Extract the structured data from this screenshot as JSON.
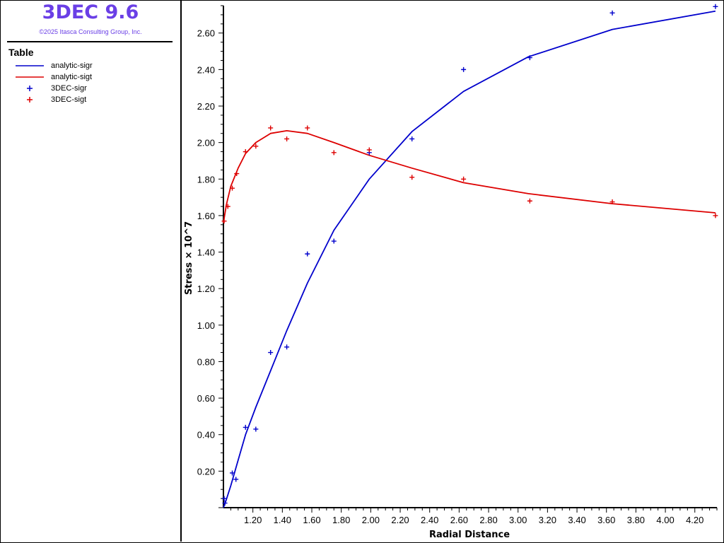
{
  "app": {
    "title": "3DEC 9.6",
    "copyright": "©2025 Itasca Consulting Group, Inc.",
    "title_color": "#6a3fe6"
  },
  "legend": {
    "heading": "Table",
    "items": [
      {
        "label": "analytic-sigr",
        "style": "line",
        "color": "#0000cc"
      },
      {
        "label": "analytic-sigt",
        "style": "line",
        "color": "#dd0000"
      },
      {
        "label": "3DEC-sigr",
        "style": "marker",
        "color": "#0000cc"
      },
      {
        "label": "3DEC-sigt",
        "style": "marker",
        "color": "#dd0000"
      }
    ]
  },
  "chart_data": {
    "type": "line",
    "xlabel": "Radial Distance",
    "ylabel": "Stress × 10^7",
    "xlim": [
      1.0,
      4.35
    ],
    "ylim": [
      0.0,
      2.75
    ],
    "x_ticks": [
      "1.20",
      "1.40",
      "1.60",
      "1.80",
      "2.00",
      "2.20",
      "2.40",
      "2.60",
      "2.80",
      "3.00",
      "3.20",
      "3.40",
      "3.60",
      "3.80",
      "4.00",
      "4.20"
    ],
    "y_ticks": [
      "0.20",
      "0.40",
      "0.60",
      "0.80",
      "1.00",
      "1.20",
      "1.40",
      "1.60",
      "1.80",
      "2.00",
      "2.20",
      "2.40",
      "2.60"
    ],
    "grid": false,
    "series": [
      {
        "name": "analytic-sigr",
        "kind": "line",
        "color": "#0000cc",
        "x": [
          1.0,
          1.02,
          1.05,
          1.1,
          1.15,
          1.22,
          1.32,
          1.43,
          1.57,
          1.75,
          1.99,
          2.28,
          2.63,
          3.07,
          3.64,
          4.34
        ],
        "y": [
          0.0,
          0.045,
          0.12,
          0.26,
          0.4,
          0.55,
          0.75,
          0.97,
          1.23,
          1.52,
          1.8,
          2.06,
          2.28,
          2.47,
          2.62,
          2.72
        ]
      },
      {
        "name": "analytic-sigt",
        "kind": "line",
        "color": "#dd0000",
        "x": [
          1.0,
          1.02,
          1.05,
          1.1,
          1.15,
          1.22,
          1.32,
          1.43,
          1.57,
          1.75,
          1.99,
          2.28,
          2.63,
          3.07,
          3.64,
          4.34
        ],
        "y": [
          1.56,
          1.66,
          1.76,
          1.86,
          1.94,
          2.0,
          2.05,
          2.065,
          2.05,
          2.0,
          1.93,
          1.86,
          1.78,
          1.72,
          1.665,
          1.615
        ]
      },
      {
        "name": "3DEC-sigr",
        "kind": "marker",
        "color": "#0000cc",
        "x": [
          1.005,
          1.01,
          1.06,
          1.085,
          1.15,
          1.22,
          1.32,
          1.43,
          1.57,
          1.75,
          1.99,
          2.28,
          2.63,
          3.08,
          3.64,
          4.34
        ],
        "y": [
          0.05,
          0.025,
          0.19,
          0.155,
          0.44,
          0.43,
          0.85,
          0.88,
          1.39,
          1.46,
          1.945,
          2.02,
          2.4,
          2.465,
          2.71,
          2.745
        ]
      },
      {
        "name": "3DEC-sigt",
        "kind": "marker",
        "color": "#dd0000",
        "x": [
          1.005,
          1.03,
          1.06,
          1.09,
          1.15,
          1.22,
          1.32,
          1.43,
          1.57,
          1.75,
          1.99,
          2.28,
          2.63,
          3.08,
          3.64,
          4.34
        ],
        "y": [
          1.57,
          1.65,
          1.75,
          1.83,
          1.95,
          1.98,
          2.08,
          2.02,
          2.08,
          1.945,
          1.96,
          1.81,
          1.8,
          1.68,
          1.675,
          1.6
        ]
      }
    ]
  }
}
